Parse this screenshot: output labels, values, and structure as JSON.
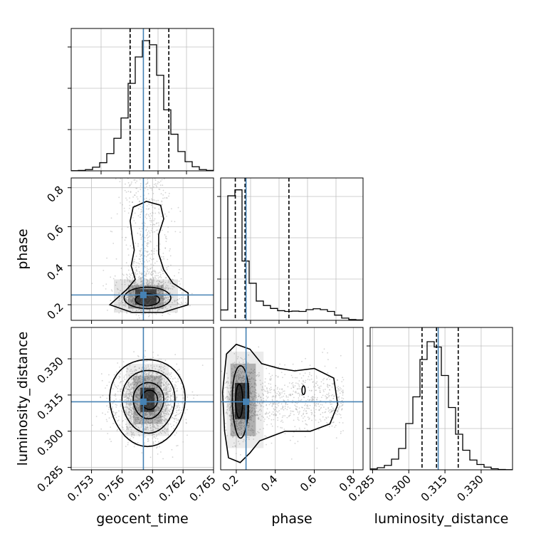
{
  "chart_data": {
    "type": "corner",
    "parameters": [
      "geocent_time",
      "phase",
      "luminosity_distance"
    ],
    "truths": {
      "geocent_time": 0.7581,
      "phase": 0.25,
      "luminosity_distance": 0.3122
    },
    "quantiles": {
      "geocent_time": [
        0.7568,
        0.7587,
        0.7606
      ],
      "phase": [
        0.195,
        0.245,
        0.47
      ],
      "luminosity_distance": [
        0.3055,
        0.3115,
        0.3205
      ]
    },
    "panels": [
      {
        "id": "hist-geocent_time",
        "kind": "histogram",
        "x": "geocent_time",
        "xlim": [
          0.751,
          0.765
        ],
        "xticks": [],
        "bin_edges": [
          0.751,
          0.7517,
          0.7524,
          0.7531,
          0.7538,
          0.7545,
          0.7552,
          0.7559,
          0.7566,
          0.7573,
          0.758,
          0.7587,
          0.7594,
          0.7601,
          0.7608,
          0.7615,
          0.7622,
          0.7629,
          0.7636,
          0.7643,
          0.765
        ],
        "counts": [
          1,
          2,
          6,
          18,
          40,
          85,
          160,
          260,
          430,
          560,
          640,
          620,
          470,
          300,
          180,
          95,
          45,
          20,
          6,
          2
        ],
        "ylim": [
          0,
          700
        ]
      },
      {
        "id": "hist-phase",
        "kind": "histogram",
        "x": "phase",
        "xlim": [
          0.12,
          0.85
        ],
        "xticks": [],
        "bin_edges": [
          0.12,
          0.1565,
          0.193,
          0.2295,
          0.266,
          0.3025,
          0.339,
          0.3755,
          0.412,
          0.4485,
          0.485,
          0.5215,
          0.558,
          0.5945,
          0.631,
          0.6675,
          0.704,
          0.7405,
          0.777,
          0.8135,
          0.85
        ],
        "counts": [
          70,
          840,
          880,
          400,
          250,
          130,
          100,
          80,
          65,
          60,
          62,
          60,
          72,
          78,
          72,
          60,
          35,
          15,
          5,
          3
        ],
        "ylim": [
          0,
          960
        ]
      },
      {
        "id": "hist-luminosity_distance",
        "kind": "histogram",
        "x": "luminosity_distance",
        "xlim": [
          0.284,
          0.343
        ],
        "xticks": [
          0.285,
          0.3,
          0.315,
          0.33
        ],
        "xticklabels": [
          "0.285",
          "0.300",
          "0.315",
          "0.330"
        ],
        "xlabel": "luminosity_distance",
        "bin_edges": [
          0.284,
          0.28695,
          0.2899,
          0.29285,
          0.2958,
          0.29875,
          0.3017,
          0.30465,
          0.3076,
          0.31055,
          0.3135,
          0.31645,
          0.3194,
          0.32235,
          0.3253,
          0.32825,
          0.3312,
          0.33415,
          0.3371,
          0.34005,
          0.343
        ],
        "counts": [
          5,
          12,
          25,
          60,
          120,
          260,
          410,
          620,
          720,
          690,
          530,
          350,
          200,
          110,
          55,
          30,
          15,
          6,
          2,
          1
        ],
        "ylim": [
          0,
          800
        ]
      },
      {
        "id": "scatter-phase-vs-geocent_time",
        "kind": "2d",
        "x": "geocent_time",
        "y": "phase",
        "xlim": [
          0.751,
          0.765
        ],
        "ylim": [
          0.12,
          0.85
        ],
        "yticks": [
          0.2,
          0.4,
          0.6,
          0.8
        ],
        "yticklabels": [
          "0.2",
          "0.4",
          "0.6",
          "0.8"
        ],
        "ylabel": "phase"
      },
      {
        "id": "scatter-lum-vs-geocent_time",
        "kind": "2d",
        "x": "geocent_time",
        "y": "luminosity_distance",
        "xlim": [
          0.751,
          0.765
        ],
        "ylim": [
          0.284,
          0.343
        ],
        "xticks": [
          0.753,
          0.756,
          0.759,
          0.762,
          0.765
        ],
        "xticklabels": [
          "0.753",
          "0.756",
          "0.759",
          "0.762",
          "0.765"
        ],
        "xlabel": "geocent_time",
        "yticks": [
          0.285,
          0.3,
          0.315,
          0.33
        ],
        "yticklabels": [
          "0.285",
          "0.300",
          "0.315",
          "0.330"
        ],
        "ylabel": "luminosity_distance"
      },
      {
        "id": "scatter-lum-vs-phase",
        "kind": "2d",
        "x": "phase",
        "y": "luminosity_distance",
        "xlim": [
          0.12,
          0.85
        ],
        "ylim": [
          0.284,
          0.343
        ],
        "xticks": [
          0.2,
          0.4,
          0.6,
          0.8
        ],
        "xticklabels": [
          "0.2",
          "0.4",
          "0.6",
          "0.8"
        ],
        "xlabel": "phase"
      }
    ],
    "grid": true,
    "colors": {
      "truth": "#4682b4",
      "line": "#000000",
      "points": "#b0b0b0",
      "grid": "#c0c0c0"
    }
  }
}
